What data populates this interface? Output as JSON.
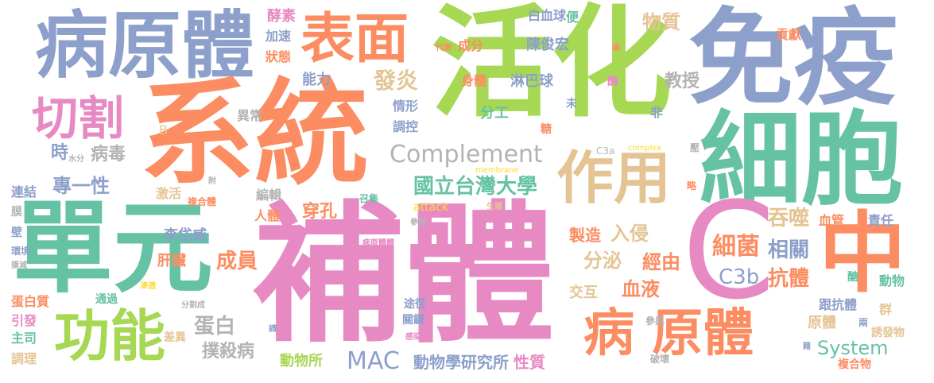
{
  "palette": {
    "green": "#a6d854",
    "teal": "#66c2a5",
    "orange": "#fc8d62",
    "blue": "#8da0cb",
    "pink": "#e78ac3",
    "yellow": "#ffd92f",
    "tan": "#e5c494",
    "gray": "#b3b3b3"
  },
  "words": {
    "huoHua": "活化",
    "mianYi": "免疫",
    "xiTong": "系統",
    "buTi": "補體",
    "danYuan": "單元",
    "xiBao": "細胞",
    "bingYuanTi": "病原體",
    "biaoMian": "表面",
    "qieGe": "切割",
    "zhong": "中",
    "bingYuanTi2": "病 原體",
    "C": "C",
    "gongNeng": "功能",
    "zuoYong": "作用",
    "complement": "Complement",
    "guoLi": "國立台灣大學",
    "faYan": "發炎",
    "wuZhi": "物質",
    "jiaoShou": "教授",
    "xiJun": "細菌",
    "xiangGuan": "相關",
    "tunShi": "吞噬",
    "fenMi": "分泌",
    "jingYou": "經由",
    "ruQin": "入侵",
    "zhiZao": "製造",
    "C3b": "C3b",
    "kangTi": "抗體",
    "xueYe": "血液",
    "chengYuan": "成員",
    "jiaoHu": "交互",
    "system": "System",
    "MAC": "MAC",
    "dongWuXue": "動物學研究所",
    "xingZhi": "性質",
    "dongWuSuo": "動物所",
    "pushaBing": "撲殺病",
    "danBai": "蛋白",
    "zhuanYiXing": "專一性",
    "bingDu": "病毒",
    "shi": "時",
    "chuanKong": "穿孔",
    "liDaiWei": "李岱威",
    "renTi": "人體",
    "ganZang": "肝臟",
    "yiChang": "異常",
    "jiaoSu": "酵素",
    "jiaSu": "加速",
    "zhuangTai": "狀態",
    "nengLi": "能力",
    "qingXing": "情形",
    "tiaoKong": "調控",
    "chengFen": "成分",
    "shenTi": "身體",
    "linBaQiu": "淋巴球",
    "fenGong": "分工",
    "chenJunHong": "陳俊宏",
    "baiXueQiu": "白血球",
    "bian": "便",
    "gongXian": "貢獻",
    "xueGuan": "血管",
    "zeRen": "責任",
    "dongWu": "動物",
    "genKangTi": "跟抗體",
    "qun": "群",
    "yuanTi": "原體",
    "youFaWu": "誘發物",
    "fuHeWu": "複合物",
    "lian": "兩",
    "tuJing": "途徑",
    "guanJian": "關鍵",
    "tongGuo": "通過",
    "danBaiZhi": "蛋白質",
    "yinFa": "引發",
    "zhuSi": "主司",
    "tiaoLi": "調理",
    "chaYi": "差異",
    "lianJie": "連結",
    "mo": "膜",
    "bi": "壁",
    "jiHuo": "激活",
    "fuHeTi": "複合體",
    "bianJi": "編輯",
    "zhaoJi": "召集",
    "B": "B",
    "shuiFen": "水分",
    "fu": "附",
    "C3a": "C3a",
    "complex": "complex",
    "membrane": "membrane",
    "attack": "attack",
    "shengLi": "生理",
    "canYue": "參閱",
    "canYu": "參與",
    "poHuai": "破壞",
    "bingYuanTiSmall": "病原體體",
    "fenGeCheng": "分割成",
    "qing": "請",
    "ganRan": "感染",
    "daiXie": "代謝",
    "ai": "癌",
    "mei": "酶",
    "lue": "略",
    "ya": "壓",
    "wei": "未",
    "fei": "非",
    "tang": "糖",
    "lao": "醣",
    "huanJing": "環境",
    "jianShao": "摸減",
    "shenTou": "滲透",
    "zao": "藉"
  }
}
